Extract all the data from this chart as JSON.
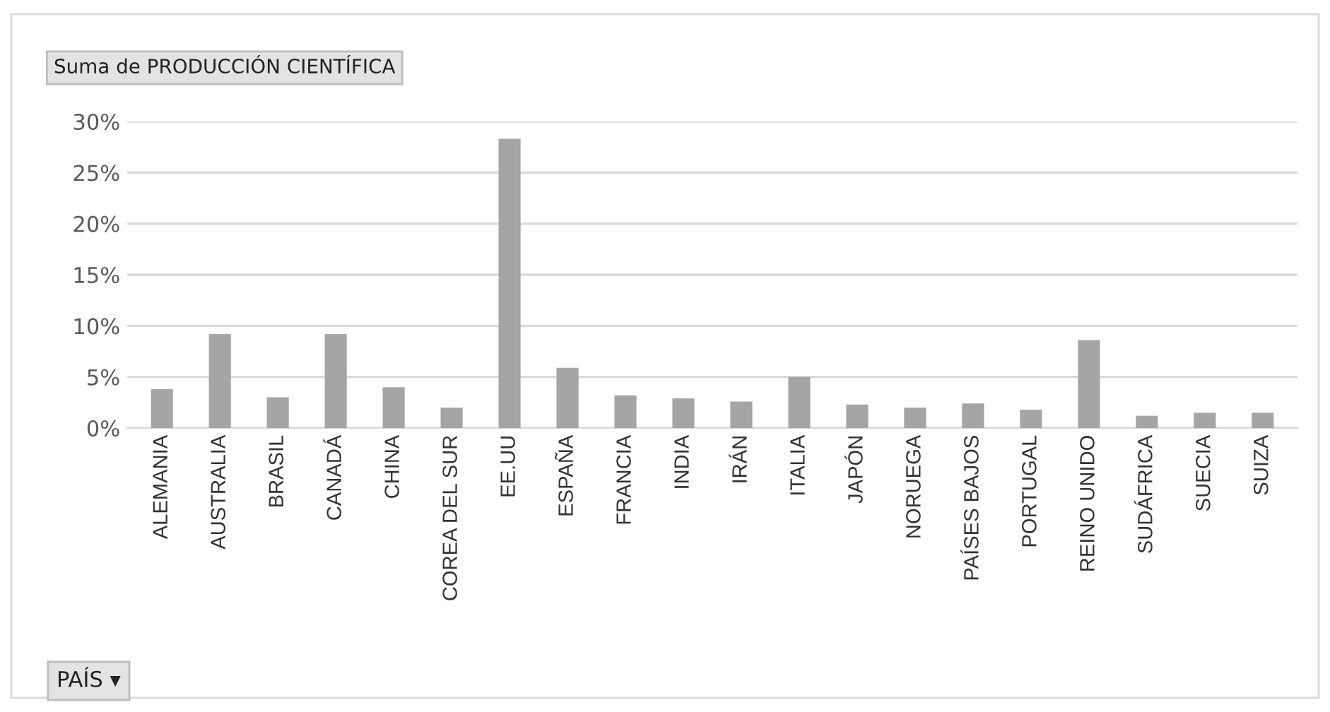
{
  "chart_data": {
    "type": "bar",
    "title": "Suma de PRODUCCIÓN CIENTÍFICA",
    "annotations": [
      "PAÍS ▾"
    ],
    "categories": [
      "ALEMANIA",
      "AUSTRALIA",
      "BRASIL",
      "CANADÁ",
      "CHINA",
      "COREA DEL SUR",
      "EE.UU",
      "ESPAÑA",
      "FRANCIA",
      "INDIA",
      "IRÁN",
      "ITALIA",
      "JAPÓN",
      "NORUEGA",
      "PAÍSES BAJOS",
      "PORTUGAL",
      "REINO UNIDO",
      "SUDÁFRICA",
      "SUECIA",
      "SUIZA"
    ],
    "values": [
      3.8,
      9.2,
      3.0,
      9.2,
      4.0,
      2.0,
      28.3,
      5.9,
      3.2,
      2.9,
      2.6,
      5.0,
      2.3,
      2.0,
      2.4,
      1.8,
      8.6,
      1.2,
      1.5,
      1.5
    ],
    "color": "#a5a5a5",
    "ylim": [
      0,
      30
    ],
    "yticks": [
      {
        "value": 0,
        "label": "0%"
      },
      {
        "value": 5,
        "label": "5%"
      },
      {
        "value": 10,
        "label": "10%"
      },
      {
        "value": 15,
        "label": "15%"
      },
      {
        "value": 20,
        "label": "20%"
      },
      {
        "value": 25,
        "label": "25%"
      },
      {
        "value": 30,
        "label": "30%"
      }
    ],
    "grid": "y"
  }
}
